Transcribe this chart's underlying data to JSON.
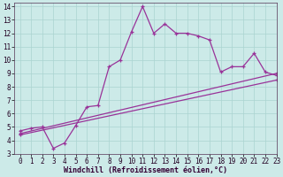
{
  "xlabel": "Windchill (Refroidissement éolien,°C)",
  "bg_color": "#cceae8",
  "line_color": "#993399",
  "grid_color": "#aad4d0",
  "xlim": [
    -0.5,
    23
  ],
  "ylim": [
    3,
    14.3
  ],
  "xticks": [
    0,
    1,
    2,
    3,
    4,
    5,
    6,
    7,
    8,
    9,
    10,
    11,
    12,
    13,
    14,
    15,
    16,
    17,
    18,
    19,
    20,
    21,
    22,
    23
  ],
  "yticks": [
    3,
    4,
    5,
    6,
    7,
    8,
    9,
    10,
    11,
    12,
    13,
    14
  ],
  "curve1_x": [
    0,
    1,
    2,
    3,
    4,
    5,
    6,
    7,
    8,
    9,
    10,
    11,
    12,
    13,
    14,
    15,
    16,
    17,
    18,
    19,
    20,
    21,
    22,
    23
  ],
  "curve1_y": [
    4.7,
    4.9,
    5.0,
    3.4,
    3.8,
    5.1,
    6.5,
    6.6,
    9.5,
    10.0,
    12.1,
    14.0,
    12.0,
    12.7,
    12.0,
    12.0,
    11.8,
    11.5,
    9.1,
    9.5,
    9.5,
    10.5,
    9.1,
    8.85
  ],
  "curve2_x": [
    0,
    23
  ],
  "curve2_y": [
    4.5,
    9.0
  ],
  "curve3_x": [
    0,
    23
  ],
  "curve3_y": [
    4.4,
    8.5
  ],
  "tick_fontsize": 5.5,
  "xlabel_fontsize": 6.0
}
